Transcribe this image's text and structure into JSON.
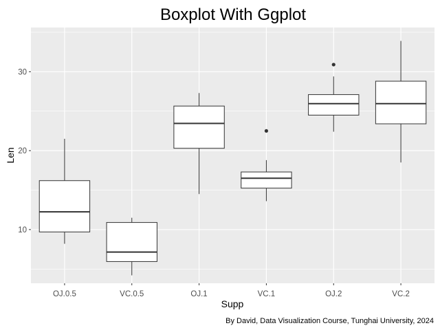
{
  "chart_data": {
    "type": "boxplot",
    "title": "Boxplot With Ggplot",
    "xlabel": "Supp",
    "ylabel": "Len",
    "caption": "By David, Data Visualization Course, Tunghai University, 2024",
    "ylim": [
      3.2,
      35.6
    ],
    "y_ticks": [
      10,
      20,
      30
    ],
    "grid": true,
    "panel_color": "#ebebeb",
    "grid_color": "#ffffff",
    "box_fill": "#ffffff",
    "line_color": "#333333",
    "categories": [
      "OJ.0.5",
      "VC.0.5",
      "OJ.1",
      "VC.1",
      "OJ.2",
      "VC.2"
    ],
    "boxes": [
      {
        "category": "OJ.0.5",
        "lower": 8.2,
        "q1": 9.7,
        "median": 12.25,
        "q3": 16.2,
        "upper": 21.5,
        "outliers": []
      },
      {
        "category": "VC.0.5",
        "lower": 4.2,
        "q1": 5.95,
        "median": 7.15,
        "q3": 10.9,
        "upper": 11.5,
        "outliers": []
      },
      {
        "category": "OJ.1",
        "lower": 14.5,
        "q1": 20.3,
        "median": 23.45,
        "q3": 25.65,
        "upper": 27.3,
        "outliers": []
      },
      {
        "category": "VC.1",
        "lower": 13.6,
        "q1": 15.25,
        "median": 16.5,
        "q3": 17.3,
        "upper": 18.8,
        "outliers": [
          22.5
        ]
      },
      {
        "category": "OJ.2",
        "lower": 22.4,
        "q1": 24.5,
        "median": 25.95,
        "q3": 27.1,
        "upper": 29.4,
        "outliers": [
          30.9
        ]
      },
      {
        "category": "VC.2",
        "lower": 18.5,
        "q1": 23.4,
        "median": 25.95,
        "q3": 28.8,
        "upper": 33.9,
        "outliers": []
      }
    ]
  }
}
